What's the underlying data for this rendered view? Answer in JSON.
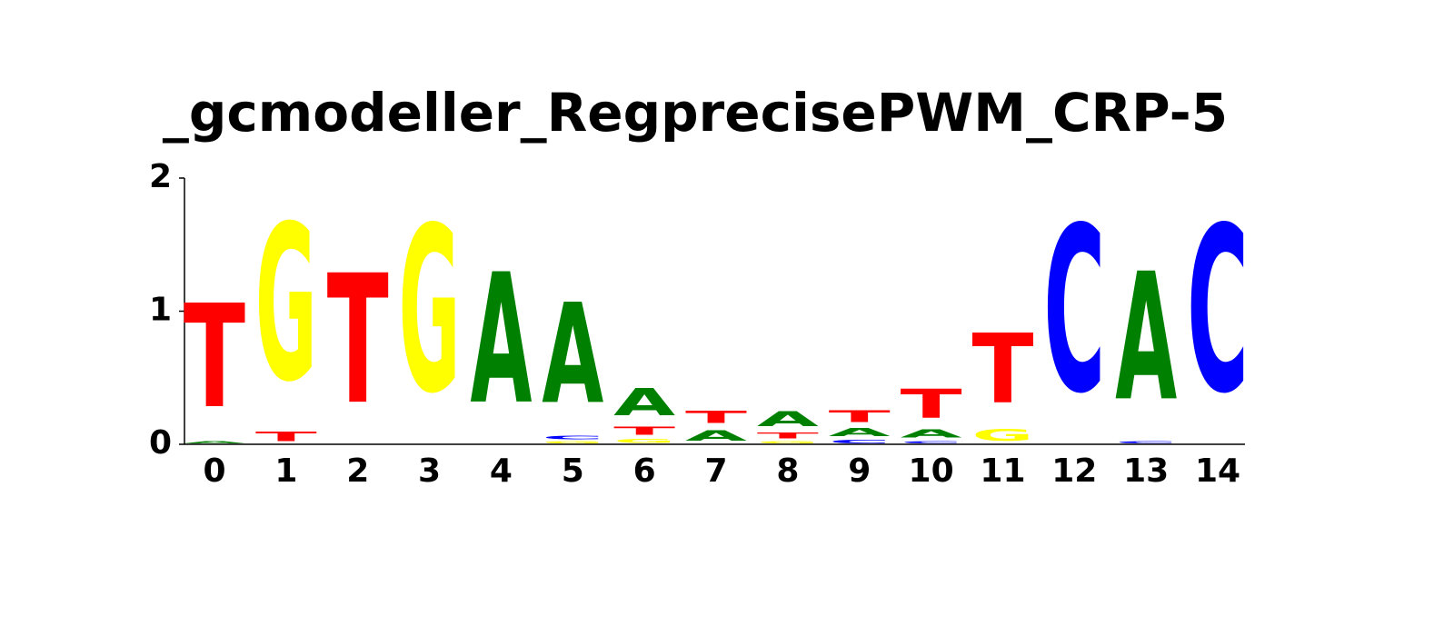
{
  "chart_data": {
    "type": "logo",
    "title": "_gcmodeller_RegprecisePWM_CRP-5",
    "categories": [
      "0",
      "1",
      "2",
      "3",
      "4",
      "5",
      "6",
      "7",
      "8",
      "9",
      "10",
      "11",
      "12",
      "13",
      "14"
    ],
    "colors": {
      "A": "#008000",
      "C": "#0000ff",
      "G": "#ffff00",
      "T": "#ff0000"
    },
    "positions": [
      {
        "letters": [
          "A",
          "T"
        ],
        "values": [
          0.03,
          1.25
        ]
      },
      {
        "letters": [
          "T",
          "G"
        ],
        "values": [
          0.11,
          1.88
        ]
      },
      {
        "letters": [
          "T"
        ],
        "values": [
          1.56
        ]
      },
      {
        "letters": [
          "G"
        ],
        "values": [
          2.0
        ]
      },
      {
        "letters": [
          "A"
        ],
        "values": [
          1.57
        ]
      },
      {
        "letters": [
          "G",
          "C",
          "A"
        ],
        "values": [
          0.03,
          0.04,
          1.21
        ]
      },
      {
        "letters": [
          "G",
          "T",
          "A"
        ],
        "values": [
          0.05,
          0.1,
          0.33
        ]
      },
      {
        "letters": [
          "A",
          "T"
        ],
        "values": [
          0.13,
          0.15
        ]
      },
      {
        "letters": [
          "G",
          "T",
          "A"
        ],
        "values": [
          0.03,
          0.07,
          0.18
        ]
      },
      {
        "letters": [
          "C",
          "A",
          "T"
        ],
        "values": [
          0.04,
          0.1,
          0.14
        ]
      },
      {
        "letters": [
          "C",
          "A",
          "T"
        ],
        "values": [
          0.03,
          0.1,
          0.35
        ]
      },
      {
        "letters": [
          "G",
          "T"
        ],
        "values": [
          0.14,
          0.84
        ]
      },
      {
        "letters": [
          "C"
        ],
        "values": [
          2.0
        ]
      },
      {
        "letters": [
          "C",
          "A"
        ],
        "values": [
          0.03,
          1.54
        ]
      },
      {
        "letters": [
          "C"
        ],
        "values": [
          2.0
        ]
      }
    ],
    "ylim": [
      0,
      2
    ],
    "yticks": [
      0,
      1,
      2
    ]
  }
}
